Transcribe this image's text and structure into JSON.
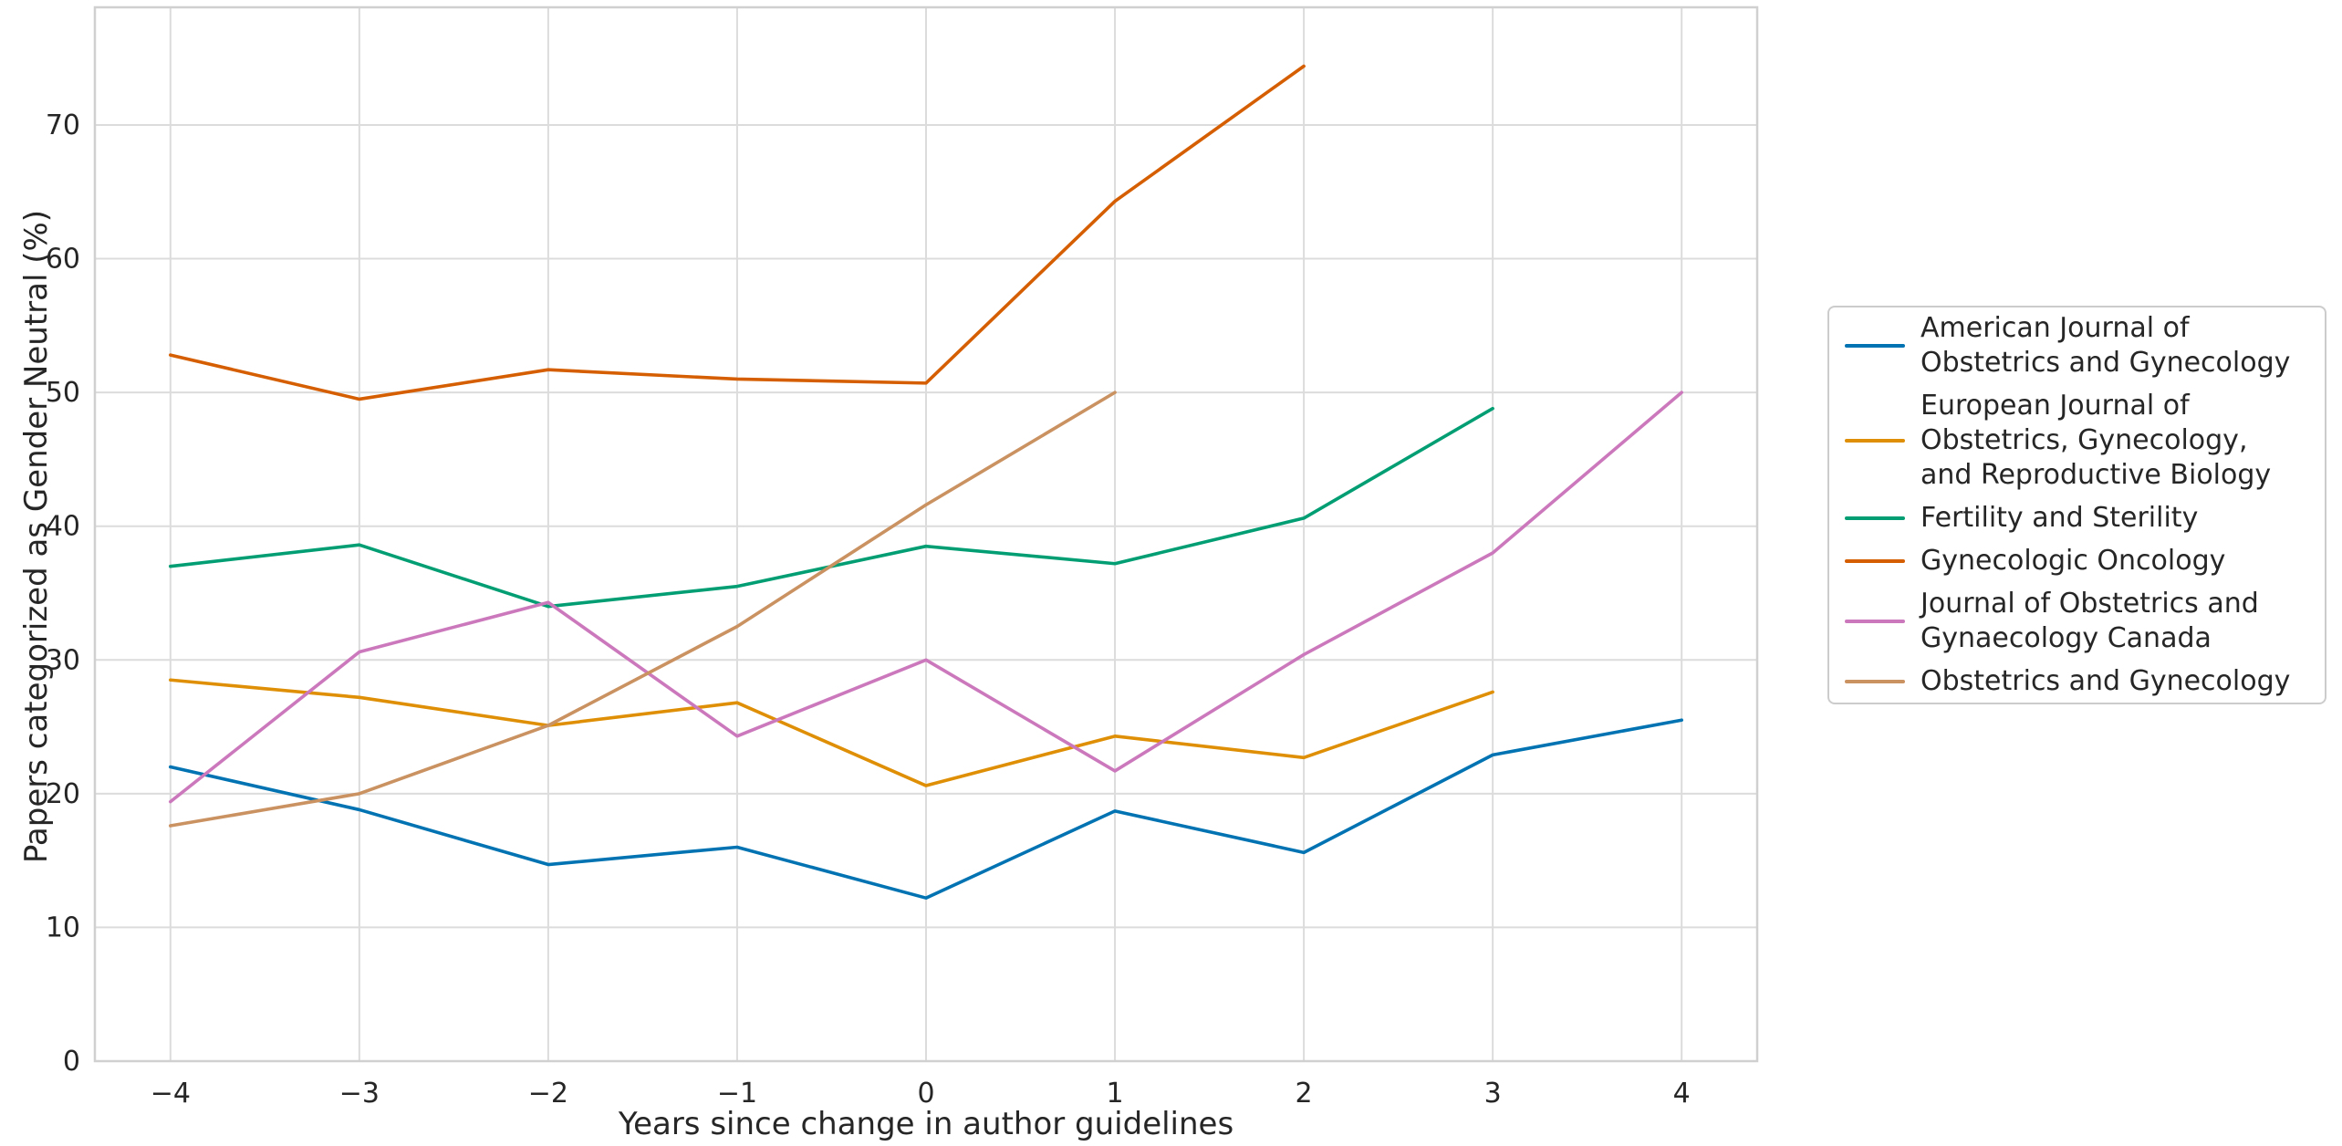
{
  "figure": {
    "background": "#ffffff",
    "grid_color": "#dcdcdc",
    "spine_color": "#d0d0d0",
    "text_color": "#262626"
  },
  "chart_data": {
    "type": "line",
    "title": "",
    "xlabel": "Years since change in author guidelines",
    "ylabel": "Papers categorized as Gender Neutral (%)",
    "x": [
      -4,
      -3,
      -2,
      -1,
      0,
      1,
      2,
      3,
      4
    ],
    "x_tick_labels": [
      "−4",
      "−3",
      "−2",
      "−1",
      "0",
      "1",
      "2",
      "3",
      "4"
    ],
    "y_ticks": [
      0,
      10,
      20,
      30,
      40,
      50,
      60,
      70
    ],
    "xlim": [
      -4.4,
      4.4
    ],
    "ylim": [
      0,
      78.8
    ],
    "grid": true,
    "legend_position": "center right",
    "series": [
      {
        "name": "American Journal of Obstetrics and Gynecology",
        "color": "#0173b2",
        "values": [
          22.0,
          18.8,
          14.7,
          16.0,
          12.2,
          18.7,
          15.6,
          22.9,
          25.5
        ]
      },
      {
        "name": "European Journal of Obstetrics, Gynecology, and Reproductive Biology",
        "color": "#de8f05",
        "values": [
          28.5,
          27.2,
          25.1,
          26.8,
          20.6,
          24.3,
          22.7,
          27.6,
          null
        ]
      },
      {
        "name": "Fertility and Sterility",
        "color": "#029e73",
        "values": [
          37.0,
          38.6,
          34.0,
          35.5,
          38.5,
          37.2,
          40.6,
          48.8,
          null
        ]
      },
      {
        "name": "Gynecologic Oncology",
        "color": "#d55e00",
        "values": [
          52.8,
          49.5,
          51.7,
          51.0,
          50.7,
          64.3,
          74.4,
          null,
          null
        ]
      },
      {
        "name": "Journal of Obstetrics and Gynaecology Canada",
        "color": "#cc78bc",
        "values": [
          19.4,
          30.6,
          34.3,
          24.3,
          30.0,
          21.7,
          30.4,
          38.0,
          50.0
        ]
      },
      {
        "name": "Obstetrics and Gynecology",
        "color": "#ca9161",
        "values": [
          17.6,
          20.0,
          25.1,
          32.5,
          41.6,
          50.0,
          null,
          null,
          null
        ]
      }
    ],
    "legend_labels": [
      [
        "American Journal of",
        "Obstetrics and Gynecology"
      ],
      [
        "European Journal of",
        "Obstetrics, Gynecology,",
        "and Reproductive Biology"
      ],
      [
        "Fertility and Sterility"
      ],
      [
        "Gynecologic Oncology"
      ],
      [
        "Journal of Obstetrics and",
        "Gynaecology Canada"
      ],
      [
        "Obstetrics and Gynecology"
      ]
    ]
  }
}
